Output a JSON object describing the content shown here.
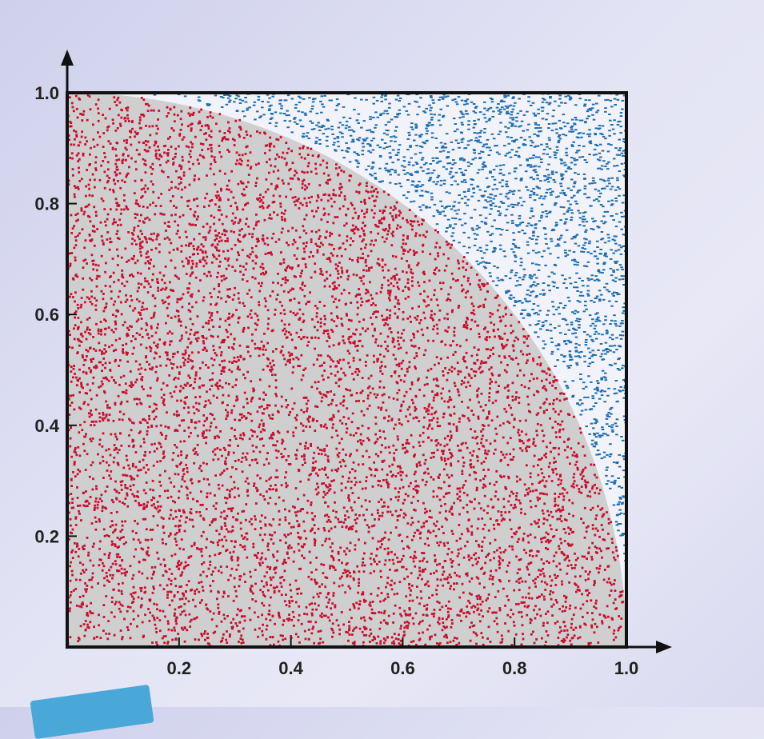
{
  "chart_data": {
    "type": "scatter",
    "title": "",
    "xlabel": "",
    "ylabel": "",
    "xlim": [
      0,
      1.0
    ],
    "ylim": [
      0,
      1.0
    ],
    "x_ticks": [
      {
        "value": 0.2,
        "label": "0.2"
      },
      {
        "value": 0.4,
        "label": "0.4"
      },
      {
        "value": 0.6,
        "label": "0.6"
      },
      {
        "value": 0.8,
        "label": "0.8"
      },
      {
        "value": 1.0,
        "label": "1.0"
      }
    ],
    "y_ticks": [
      {
        "value": 0.2,
        "label": "0.2"
      },
      {
        "value": 0.4,
        "label": "0.4"
      },
      {
        "value": 0.6,
        "label": "0.6"
      },
      {
        "value": 0.8,
        "label": "0.8"
      },
      {
        "value": 1.0,
        "label": "1.0"
      }
    ],
    "grid": false,
    "legend": "none",
    "boundary": "quarter circle x^2 + y^2 = 1",
    "series": [
      {
        "region": "inside",
        "color": "#c8102e",
        "point_count": 7000,
        "background": "#cfcfcf"
      },
      {
        "region": "outside",
        "color": "#1f6fb0",
        "point_count": 2200,
        "background": "#f2f2fa"
      }
    ]
  }
}
